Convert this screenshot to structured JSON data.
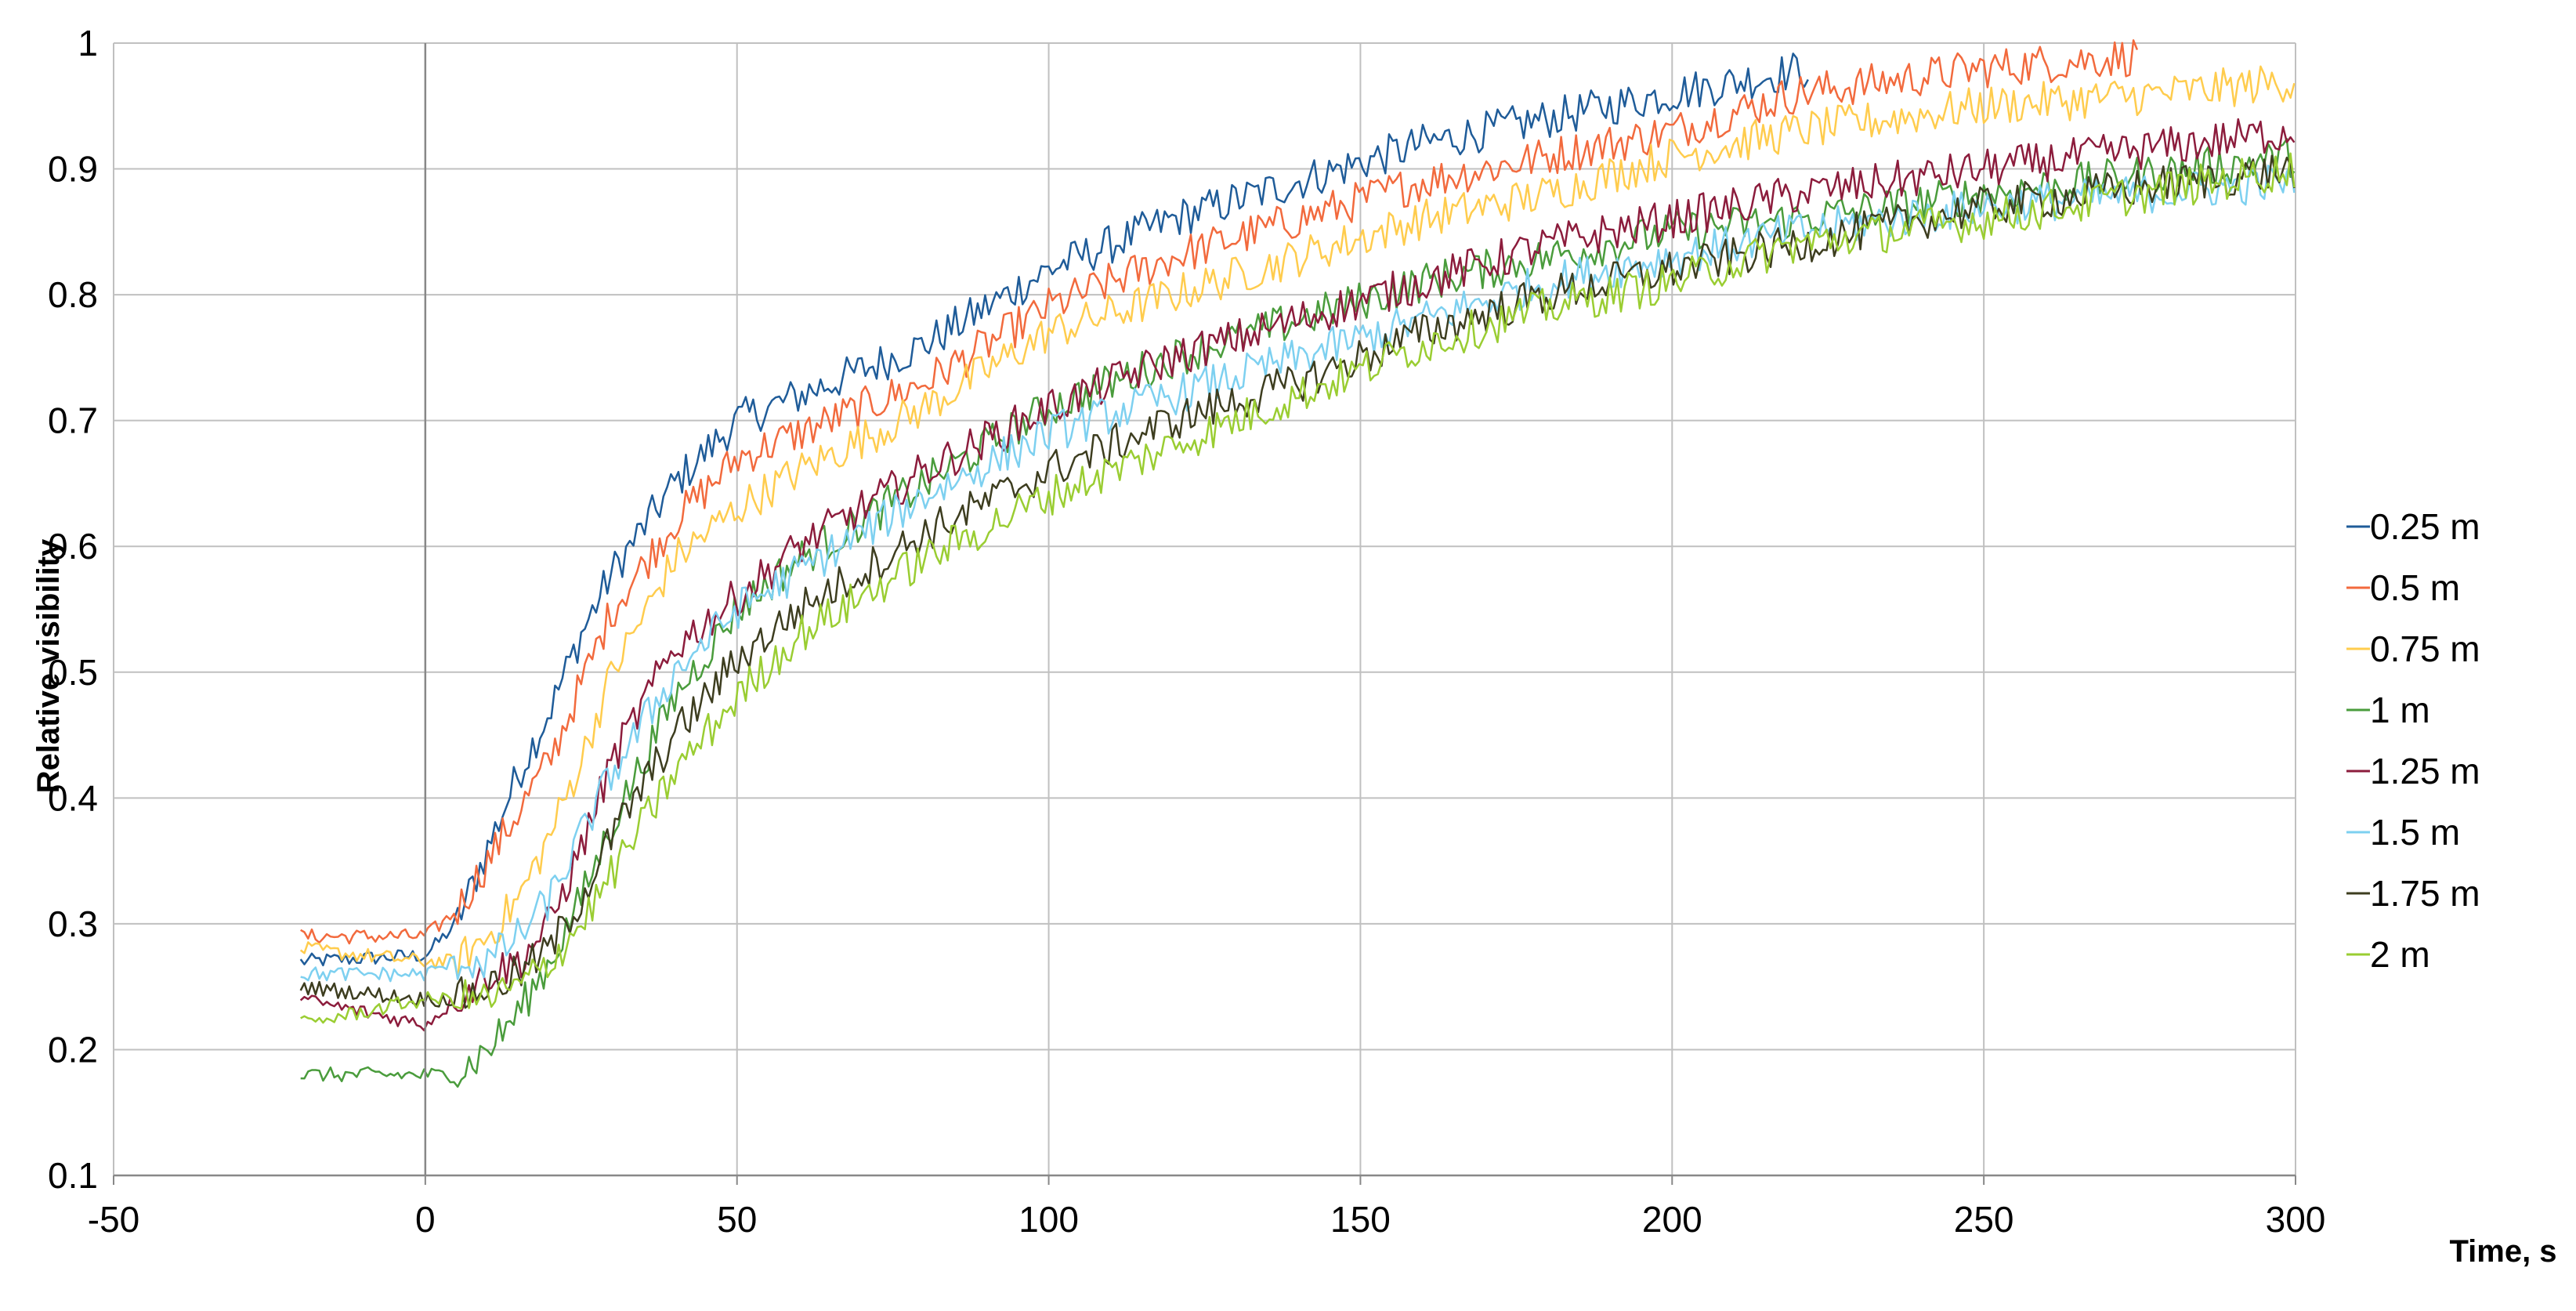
{
  "chart_data": {
    "type": "line",
    "title": "",
    "xlabel": "Time, s",
    "ylabel": "Relative visibility",
    "xlim": [
      -50,
      300
    ],
    "ylim": [
      0.1,
      1
    ],
    "x_ticks": [
      "-50",
      "0",
      "50",
      "100",
      "150",
      "200",
      "250",
      "300"
    ],
    "y_ticks": [
      "0.1",
      "0.2",
      "0.3",
      "0.4",
      "0.5",
      "0.6",
      "0.7",
      "0.8",
      "0.9",
      "1"
    ],
    "grid": true,
    "legend_position": "right",
    "series": [
      {
        "name": "0.25 m",
        "color": "#1f5c99",
        "x": [
          -20,
          0,
          5,
          10,
          15,
          20,
          25,
          30,
          40,
          50,
          60,
          80,
          100,
          120,
          140,
          160,
          180,
          200,
          222
        ],
        "y": [
          0.27,
          0.275,
          0.3,
          0.36,
          0.42,
          0.47,
          0.53,
          0.58,
          0.65,
          0.7,
          0.72,
          0.76,
          0.82,
          0.86,
          0.89,
          0.92,
          0.94,
          0.96,
          0.98
        ]
      },
      {
        "name": "0.5 m",
        "color": "#f26a3d",
        "x": [
          -20,
          0,
          5,
          10,
          15,
          20,
          25,
          30,
          40,
          50,
          60,
          80,
          100,
          120,
          140,
          160,
          180,
          200,
          220,
          250,
          275
        ],
        "y": [
          0.29,
          0.29,
          0.31,
          0.35,
          0.39,
          0.43,
          0.49,
          0.55,
          0.62,
          0.67,
          0.69,
          0.73,
          0.79,
          0.83,
          0.86,
          0.89,
          0.91,
          0.93,
          0.96,
          0.98,
          0.99
        ]
      },
      {
        "name": "0.75 m",
        "color": "#ffcc4d",
        "x": [
          -20,
          0,
          5,
          10,
          15,
          20,
          25,
          30,
          40,
          50,
          60,
          80,
          100,
          120,
          140,
          160,
          180,
          200,
          220,
          250,
          280,
          300
        ],
        "y": [
          0.28,
          0.27,
          0.27,
          0.29,
          0.32,
          0.37,
          0.43,
          0.5,
          0.59,
          0.63,
          0.66,
          0.71,
          0.77,
          0.8,
          0.83,
          0.86,
          0.88,
          0.91,
          0.93,
          0.95,
          0.96,
          0.97
        ]
      },
      {
        "name": "1 m",
        "color": "#4a9c3c",
        "x": [
          -20,
          0,
          5,
          10,
          15,
          20,
          25,
          30,
          40,
          50,
          60,
          80,
          100,
          120,
          140,
          160,
          180,
          200,
          220,
          250,
          300
        ],
        "y": [
          0.18,
          0.18,
          0.18,
          0.2,
          0.23,
          0.27,
          0.32,
          0.38,
          0.48,
          0.55,
          0.59,
          0.65,
          0.71,
          0.75,
          0.78,
          0.81,
          0.83,
          0.85,
          0.86,
          0.88,
          0.91
        ]
      },
      {
        "name": "1.25 m",
        "color": "#8c1c3c",
        "x": [
          -20,
          0,
          5,
          10,
          15,
          20,
          25,
          30,
          40,
          50,
          60,
          80,
          100,
          120,
          140,
          160,
          180,
          200,
          220,
          250,
          300
        ],
        "y": [
          0.24,
          0.22,
          0.24,
          0.26,
          0.27,
          0.3,
          0.36,
          0.43,
          0.52,
          0.56,
          0.6,
          0.66,
          0.71,
          0.75,
          0.78,
          0.81,
          0.84,
          0.86,
          0.88,
          0.9,
          0.93
        ]
      },
      {
        "name": "1.5 m",
        "color": "#7dd0f0",
        "x": [
          -20,
          0,
          5,
          10,
          15,
          20,
          25,
          30,
          40,
          50,
          60,
          80,
          100,
          120,
          140,
          160,
          180,
          200,
          220,
          250,
          300
        ],
        "y": [
          0.26,
          0.26,
          0.27,
          0.27,
          0.29,
          0.32,
          0.37,
          0.42,
          0.5,
          0.55,
          0.58,
          0.64,
          0.69,
          0.72,
          0.75,
          0.78,
          0.81,
          0.83,
          0.85,
          0.87,
          0.89
        ]
      },
      {
        "name": "1.75 m",
        "color": "#3d3d1f",
        "x": [
          -20,
          0,
          5,
          10,
          15,
          20,
          25,
          30,
          40,
          50,
          60,
          80,
          100,
          120,
          140,
          160,
          180,
          200,
          220,
          250,
          300
        ],
        "y": [
          0.25,
          0.24,
          0.24,
          0.25,
          0.26,
          0.28,
          0.32,
          0.37,
          0.45,
          0.51,
          0.55,
          0.61,
          0.66,
          0.7,
          0.73,
          0.77,
          0.8,
          0.82,
          0.84,
          0.87,
          0.9
        ]
      },
      {
        "name": "2 m",
        "color": "#9acd32",
        "x": [
          -20,
          0,
          5,
          10,
          15,
          20,
          25,
          30,
          40,
          50,
          60,
          80,
          100,
          120,
          140,
          160,
          180,
          200,
          220,
          250,
          300
        ],
        "y": [
          0.22,
          0.24,
          0.24,
          0.24,
          0.25,
          0.27,
          0.3,
          0.34,
          0.42,
          0.48,
          0.53,
          0.59,
          0.64,
          0.68,
          0.72,
          0.76,
          0.79,
          0.81,
          0.84,
          0.86,
          0.9
        ]
      }
    ]
  }
}
